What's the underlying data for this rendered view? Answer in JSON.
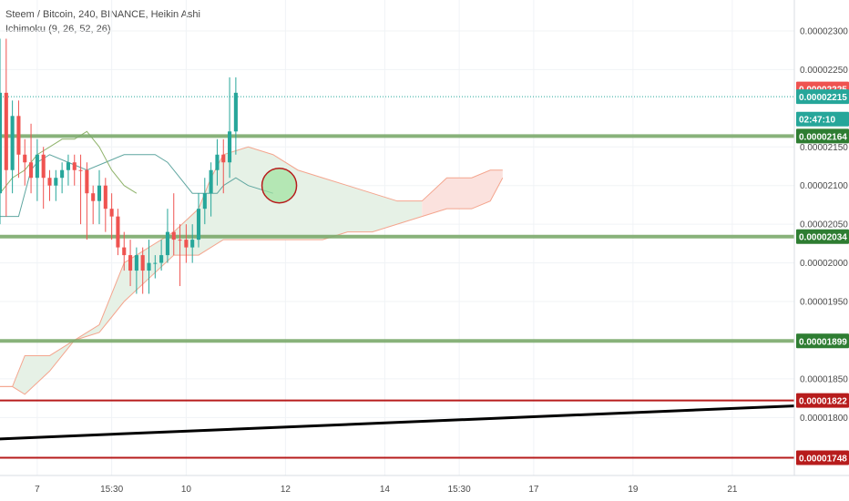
{
  "header": {
    "symbol_line": "Steem / Bitcoin, 240, BINANCE, Heikin Ashi",
    "indicator_line": "Ichimoku (9, 26, 52, 26)"
  },
  "colors": {
    "bull": "#26a69a",
    "bear": "#ef5350",
    "support_line": "#7caa6c",
    "red_line": "#b71c1c",
    "trend_line": "#000000",
    "cloud_bull_fill": "#e6f1e6",
    "cloud_bear_fill": "#fbe2de",
    "kijun": "#5fa6a0",
    "senkou": "#f4a58e",
    "chikou": "#8fb36b",
    "countdown_bg": "#26a69a",
    "last_price_bg": "#ef5350",
    "ask_price_bg": "#26a69a",
    "level_tag_green": "#2e7d32",
    "level_tag_red": "#b71c1c"
  },
  "chart_data": {
    "type": "candlestick",
    "title": "Steem / Bitcoin, 240, BINANCE, Heikin Ashi",
    "ylim": [
      1.725e-05,
      2.34e-05
    ],
    "y_ticks": [
      "0.00002300",
      "0.00002250",
      "0.00002150",
      "0.00002100",
      "0.00002050",
      "0.00002000",
      "0.00001950",
      "0.00001900",
      "0.00001850",
      "0.00001800"
    ],
    "y_tick_values": [
      2.3e-05,
      2.25e-05,
      2.15e-05,
      2.1e-05,
      2.05e-05,
      2e-05,
      1.95e-05,
      1.9e-05,
      1.85e-05,
      1.8e-05
    ],
    "x_ticks": [
      "7",
      "15:30",
      "10",
      "12",
      "14",
      "15:30",
      "17",
      "19",
      "21"
    ],
    "x_tick_index": [
      6,
      18,
      30,
      46,
      62,
      74,
      86,
      102,
      118
    ],
    "candles": [
      {
        "o": 2.09e-05,
        "c": 2.22e-05,
        "h": 2.29e-05,
        "l": 2.05e-05,
        "d": "u"
      },
      {
        "o": 2.22e-05,
        "c": 2.12e-05,
        "h": 2.29e-05,
        "l": 2.06e-05,
        "d": "d"
      },
      {
        "o": 2.12e-05,
        "c": 2.19e-05,
        "h": 2.21e-05,
        "l": 2.09e-05,
        "d": "u"
      },
      {
        "o": 2.19e-05,
        "c": 2.14e-05,
        "h": 2.21e-05,
        "l": 2.11e-05,
        "d": "d"
      },
      {
        "o": 2.14e-05,
        "c": 2.13e-05,
        "h": 2.16e-05,
        "l": 2.1e-05,
        "d": "d"
      },
      {
        "o": 2.13e-05,
        "c": 2.11e-05,
        "h": 2.18e-05,
        "l": 2.09e-05,
        "d": "d"
      },
      {
        "o": 2.11e-05,
        "c": 2.14e-05,
        "h": 2.16e-05,
        "l": 2.08e-05,
        "d": "u"
      },
      {
        "o": 2.14e-05,
        "c": 2.11e-05,
        "h": 2.15e-05,
        "l": 2.07e-05,
        "d": "d"
      },
      {
        "o": 2.11e-05,
        "c": 2.1e-05,
        "h": 2.12e-05,
        "l": 2.08e-05,
        "d": "d"
      },
      {
        "o": 2.1e-05,
        "c": 2.11e-05,
        "h": 2.12e-05,
        "l": 2.08e-05,
        "d": "u"
      },
      {
        "o": 2.11e-05,
        "c": 2.12e-05,
        "h": 2.13e-05,
        "l": 2.09e-05,
        "d": "u"
      },
      {
        "o": 2.12e-05,
        "c": 2.13e-05,
        "h": 2.14e-05,
        "l": 2.1e-05,
        "d": "u"
      },
      {
        "o": 2.13e-05,
        "c": 2.12e-05,
        "h": 2.14e-05,
        "l": 2.1e-05,
        "d": "d"
      },
      {
        "o": 2.12e-05,
        "c": 2.12e-05,
        "h": 2.14e-05,
        "l": 2.05e-05,
        "d": "d"
      },
      {
        "o": 2.12e-05,
        "c": 2.09e-05,
        "h": 2.13e-05,
        "l": 2.03e-05,
        "d": "d"
      },
      {
        "o": 2.09e-05,
        "c": 2.08e-05,
        "h": 2.1e-05,
        "l": 2.05e-05,
        "d": "d"
      },
      {
        "o": 2.08e-05,
        "c": 2.1e-05,
        "h": 2.12e-05,
        "l": 2.05e-05,
        "d": "u"
      },
      {
        "o": 2.1e-05,
        "c": 2.07e-05,
        "h": 2.11e-05,
        "l": 2.04e-05,
        "d": "d"
      },
      {
        "o": 2.07e-05,
        "c": 2.06e-05,
        "h": 2.09e-05,
        "l": 2.03e-05,
        "d": "d"
      },
      {
        "o": 2.06e-05,
        "c": 2.02e-05,
        "h": 2.07e-05,
        "l": 2.01e-05,
        "d": "d"
      },
      {
        "o": 2.02e-05,
        "c": 2.01e-05,
        "h": 2.04e-05,
        "l": 1.99e-05,
        "d": "d"
      },
      {
        "o": 2.01e-05,
        "c": 1.99e-05,
        "h": 2.03e-05,
        "l": 1.97e-05,
        "d": "d"
      },
      {
        "o": 1.99e-05,
        "c": 2.01e-05,
        "h": 2.02e-05,
        "l": 1.96e-05,
        "d": "u"
      },
      {
        "o": 2.01e-05,
        "c": 1.99e-05,
        "h": 2.02e-05,
        "l": 1.96e-05,
        "d": "d"
      },
      {
        "o": 1.99e-05,
        "c": 2e-05,
        "h": 2.03e-05,
        "l": 1.96e-05,
        "d": "u"
      },
      {
        "o": 2e-05,
        "c": 2e-05,
        "h": 2.01e-05,
        "l": 1.98e-05,
        "d": "u"
      },
      {
        "o": 2e-05,
        "c": 2.01e-05,
        "h": 2.03e-05,
        "l": 1.99e-05,
        "d": "u"
      },
      {
        "o": 2.01e-05,
        "c": 2.04e-05,
        "h": 2.07e-05,
        "l": 2e-05,
        "d": "u"
      },
      {
        "o": 2.04e-05,
        "c": 2.03e-05,
        "h": 2.09e-05,
        "l": 2.01e-05,
        "d": "d"
      },
      {
        "o": 2.03e-05,
        "c": 2.03e-05,
        "h": 2.05e-05,
        "l": 1.97e-05,
        "d": "d"
      },
      {
        "o": 2.03e-05,
        "c": 2.02e-05,
        "h": 2.05e-05,
        "l": 2e-05,
        "d": "d"
      },
      {
        "o": 2.02e-05,
        "c": 2.03e-05,
        "h": 2.05e-05,
        "l": 2e-05,
        "d": "u"
      },
      {
        "o": 2.03e-05,
        "c": 2.07e-05,
        "h": 2.09e-05,
        "l": 2.02e-05,
        "d": "u"
      },
      {
        "o": 2.07e-05,
        "c": 2.09e-05,
        "h": 2.11e-05,
        "l": 2.05e-05,
        "d": "u"
      },
      {
        "o": 2.09e-05,
        "c": 2.12e-05,
        "h": 2.13e-05,
        "l": 2.06e-05,
        "d": "u"
      },
      {
        "o": 2.12e-05,
        "c": 2.14e-05,
        "h": 2.16e-05,
        "l": 2.1e-05,
        "d": "u"
      },
      {
        "o": 2.14e-05,
        "c": 2.13e-05,
        "h": 2.16e-05,
        "l": 2.09e-05,
        "d": "d"
      },
      {
        "o": 2.13e-05,
        "c": 2.17e-05,
        "h": 2.24e-05,
        "l": 2.11e-05,
        "d": "u"
      },
      {
        "o": 2.17e-05,
        "c": 2.22e-05,
        "h": 2.24e-05,
        "l": 2.14e-05,
        "d": "u"
      }
    ],
    "candle_start_index": 0,
    "candle_pixel_map": "the first candles fill x positions 0-39 of a 0-128 index range",
    "horizontal_levels": [
      {
        "value": 2.164e-05,
        "label": "0.00002164",
        "style": "green"
      },
      {
        "value": 2.034e-05,
        "label": "0.00002034",
        "style": "green"
      },
      {
        "value": 1.899e-05,
        "label": "0.00001899",
        "style": "green"
      },
      {
        "value": 1.822e-05,
        "label": "0.00001822",
        "style": "red"
      },
      {
        "value": 1.748e-05,
        "label": "0.00001748",
        "style": "red"
      }
    ],
    "price_tags": [
      {
        "label": "0.00002225",
        "value": 2.225e-05,
        "style": "last"
      },
      {
        "label": "0.00002215",
        "value": 2.215e-05,
        "style": "ask"
      },
      {
        "label": "02:47:10",
        "value": 2.186e-05,
        "style": "countdown"
      }
    ],
    "trend_line": {
      "x0": -1,
      "y0": 1.772e-05,
      "x1": 128,
      "y1": 1.815e-05
    },
    "ichimoku": {
      "kijun": [
        [
          0,
          2.06e-05
        ],
        [
          3,
          2.06e-05
        ],
        [
          5,
          2.12e-05
        ],
        [
          6,
          2.13e-05
        ],
        [
          8,
          2.14e-05
        ],
        [
          11,
          2.13e-05
        ],
        [
          14,
          2.12e-05
        ],
        [
          17,
          2.13e-05
        ],
        [
          20,
          2.14e-05
        ],
        [
          22,
          2.14e-05
        ],
        [
          25,
          2.14e-05
        ],
        [
          27,
          2.13e-05
        ],
        [
          29,
          2.11e-05
        ],
        [
          31,
          2.09e-05
        ],
        [
          33,
          2.09e-05
        ],
        [
          35,
          2.09e-05
        ],
        [
          36,
          2.1e-05
        ],
        [
          38,
          2.11e-05
        ],
        [
          40,
          2.1e-05
        ],
        [
          44,
          2.09e-05
        ]
      ],
      "chikou": [
        [
          0,
          2.09e-05
        ],
        [
          2,
          2.11e-05
        ],
        [
          4,
          2.12e-05
        ],
        [
          6,
          2.14e-05
        ],
        [
          8,
          2.15e-05
        ],
        [
          10,
          2.16e-05
        ],
        [
          12,
          2.16e-05
        ],
        [
          14,
          2.17e-05
        ],
        [
          16,
          2.15e-05
        ],
        [
          18,
          2.12e-05
        ],
        [
          20,
          2.1e-05
        ],
        [
          22,
          2.09e-05
        ]
      ],
      "cloud_top": [
        [
          0,
          1.84e-05
        ],
        [
          2,
          1.84e-05
        ],
        [
          4,
          1.88e-05
        ],
        [
          8,
          1.88e-05
        ],
        [
          12,
          1.9e-05
        ],
        [
          16,
          1.92e-05
        ],
        [
          18,
          1.96e-05
        ],
        [
          20,
          2e-05
        ],
        [
          24,
          2.02e-05
        ],
        [
          28,
          2.04e-05
        ],
        [
          32,
          2.07e-05
        ],
        [
          34,
          2.11e-05
        ],
        [
          36,
          2.14e-05
        ],
        [
          40,
          2.15e-05
        ],
        [
          44,
          2.14e-05
        ],
        [
          48,
          2.12e-05
        ],
        [
          52,
          2.11e-05
        ],
        [
          56,
          2.1e-05
        ],
        [
          60,
          2.09e-05
        ],
        [
          64,
          2.08e-05
        ],
        [
          68,
          2.08e-05
        ],
        [
          72,
          2.11e-05
        ],
        [
          76,
          2.11e-05
        ],
        [
          79,
          2.12e-05
        ],
        [
          81,
          2.12e-05
        ]
      ],
      "cloud_bottom": [
        [
          0,
          1.84e-05
        ],
        [
          2,
          1.84e-05
        ],
        [
          4,
          1.83e-05
        ],
        [
          8,
          1.86e-05
        ],
        [
          12,
          1.9e-05
        ],
        [
          16,
          1.91e-05
        ],
        [
          18,
          1.93e-05
        ],
        [
          20,
          1.95e-05
        ],
        [
          24,
          1.98e-05
        ],
        [
          28,
          2.01e-05
        ],
        [
          32,
          2.01e-05
        ],
        [
          34,
          2.02e-05
        ],
        [
          36,
          2.03e-05
        ],
        [
          40,
          2.03e-05
        ],
        [
          44,
          2.03e-05
        ],
        [
          48,
          2.03e-05
        ],
        [
          52,
          2.03e-05
        ],
        [
          56,
          2.04e-05
        ],
        [
          60,
          2.04e-05
        ],
        [
          64,
          2.05e-05
        ],
        [
          68,
          2.06e-05
        ],
        [
          72,
          2.07e-05
        ],
        [
          76,
          2.07e-05
        ],
        [
          79,
          2.08e-05
        ],
        [
          81,
          2.11e-05
        ]
      ],
      "cloud_flip_index": 68
    },
    "grid": true,
    "legend_position": "top-left",
    "circle_marker": {
      "index": 45,
      "value": 2.1e-05
    }
  }
}
